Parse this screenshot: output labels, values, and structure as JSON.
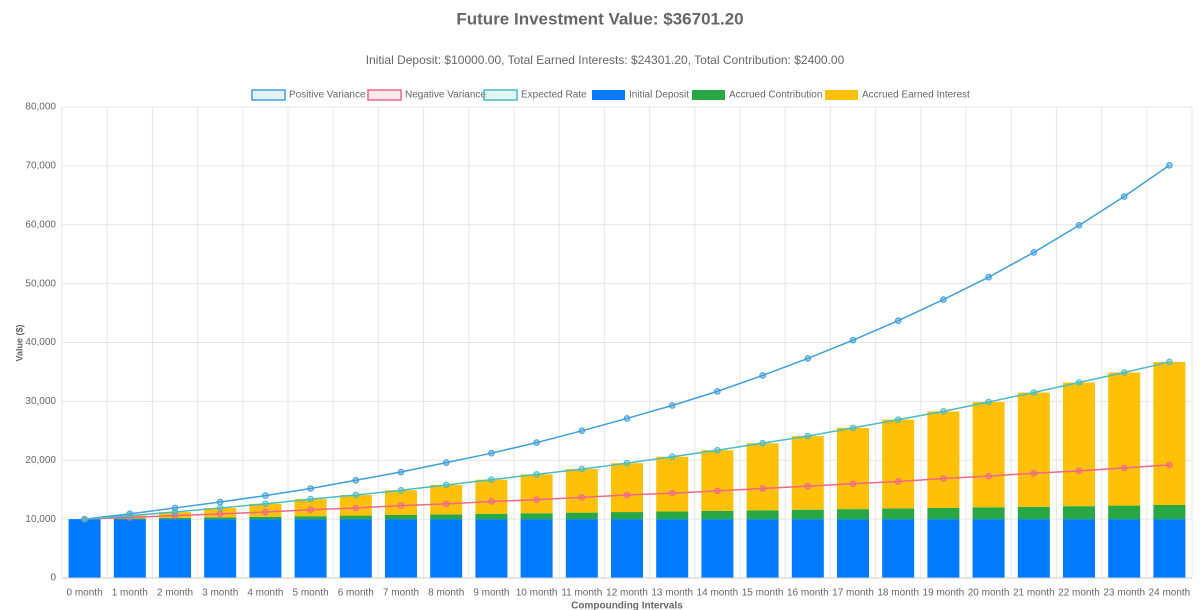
{
  "chart_data": {
    "type": "bar",
    "stacked": true,
    "grid": true,
    "title": "Future Investment Value: $36701.20",
    "subtitle": "Initial Deposit: $10000.00, Total Earned Interests: $24301.20, Total Contribution: $2400.00",
    "x_label": "Compounding Intervals",
    "y_label": "Value ($)",
    "categories": [
      "0 month",
      "1 month",
      "2 month",
      "3 month",
      "4 month",
      "5 month",
      "6 month",
      "7 month",
      "8 month",
      "9 month",
      "10 month",
      "11 month",
      "12 month",
      "13 month",
      "14 month",
      "15 month",
      "16 month",
      "17 month",
      "18 month",
      "19 month",
      "20 month",
      "21 month",
      "22 month",
      "23 month",
      "24 month"
    ],
    "ylim": [
      0,
      80000
    ],
    "yticks": [
      0,
      {
        "value": 10000,
        "label": "10,000"
      },
      {
        "value": 20000,
        "label": "20,000"
      },
      {
        "value": 30000,
        "label": "30,000"
      },
      {
        "value": 40000,
        "label": "40,000"
      },
      {
        "value": 50000,
        "label": "50,000"
      },
      {
        "value": 60000,
        "label": "60,000"
      },
      {
        "value": 70000,
        "label": "70,000"
      },
      {
        "value": 80000,
        "label": "80,000"
      }
    ],
    "series": [
      {
        "name": "Positive Variance",
        "type": "line",
        "color": "#3f9fdc",
        "values": [
          10000,
          10900,
          11900,
          12900,
          14000,
          15200,
          16600,
          18000,
          19600,
          21200,
          23000,
          25000,
          27100,
          29300,
          31700,
          34400,
          37300,
          40400,
          43700,
          47300,
          51100,
          55300,
          59900,
          64800,
          70100
        ]
      },
      {
        "name": "Negative Variance",
        "type": "line",
        "color": "#f2668b",
        "values": [
          10000,
          10300,
          10600,
          10900,
          11200,
          11600,
          11900,
          12300,
          12600,
          13000,
          13300,
          13700,
          14100,
          14400,
          14800,
          15200,
          15600,
          16000,
          16400,
          16900,
          17300,
          17800,
          18200,
          18700,
          19200
        ]
      },
      {
        "name": "Expected Rate",
        "type": "line",
        "color": "#4bbcc0",
        "values": [
          10000,
          10600,
          11200,
          11900,
          12600,
          13400,
          14100,
          14900,
          15800,
          16700,
          17600,
          18500,
          19500,
          20600,
          21700,
          22900,
          24100,
          25500,
          26900,
          28300,
          29900,
          31500,
          33200,
          34900,
          36701.2
        ]
      },
      {
        "name": "Initial Deposit",
        "type": "bar",
        "color": "#007bff",
        "values": [
          10000,
          10000,
          10000,
          10000,
          10000,
          10000,
          10000,
          10000,
          10000,
          10000,
          10000,
          10000,
          10000,
          10000,
          10000,
          10000,
          10000,
          10000,
          10000,
          10000,
          10000,
          10000,
          10000,
          10000,
          10000
        ]
      },
      {
        "name": "Accrued Contribution",
        "type": "bar",
        "color": "#28a745",
        "values": [
          0,
          100,
          200,
          300,
          400,
          500,
          600,
          700,
          800,
          900,
          1000,
          1100,
          1200,
          1300,
          1400,
          1500,
          1600,
          1700,
          1800,
          1900,
          2000,
          2100,
          2200,
          2300,
          2400
        ]
      },
      {
        "name": "Accrued Earned Interest",
        "type": "bar",
        "color": "#ffc107",
        "values": [
          0,
          500,
          1000,
          1600,
          2200,
          2900,
          3500,
          4200,
          5000,
          5800,
          6600,
          7400,
          8300,
          9300,
          10300,
          11400,
          12500,
          13800,
          15100,
          16400,
          17900,
          19400,
          21000,
          22600,
          24301.2
        ]
      }
    ]
  }
}
